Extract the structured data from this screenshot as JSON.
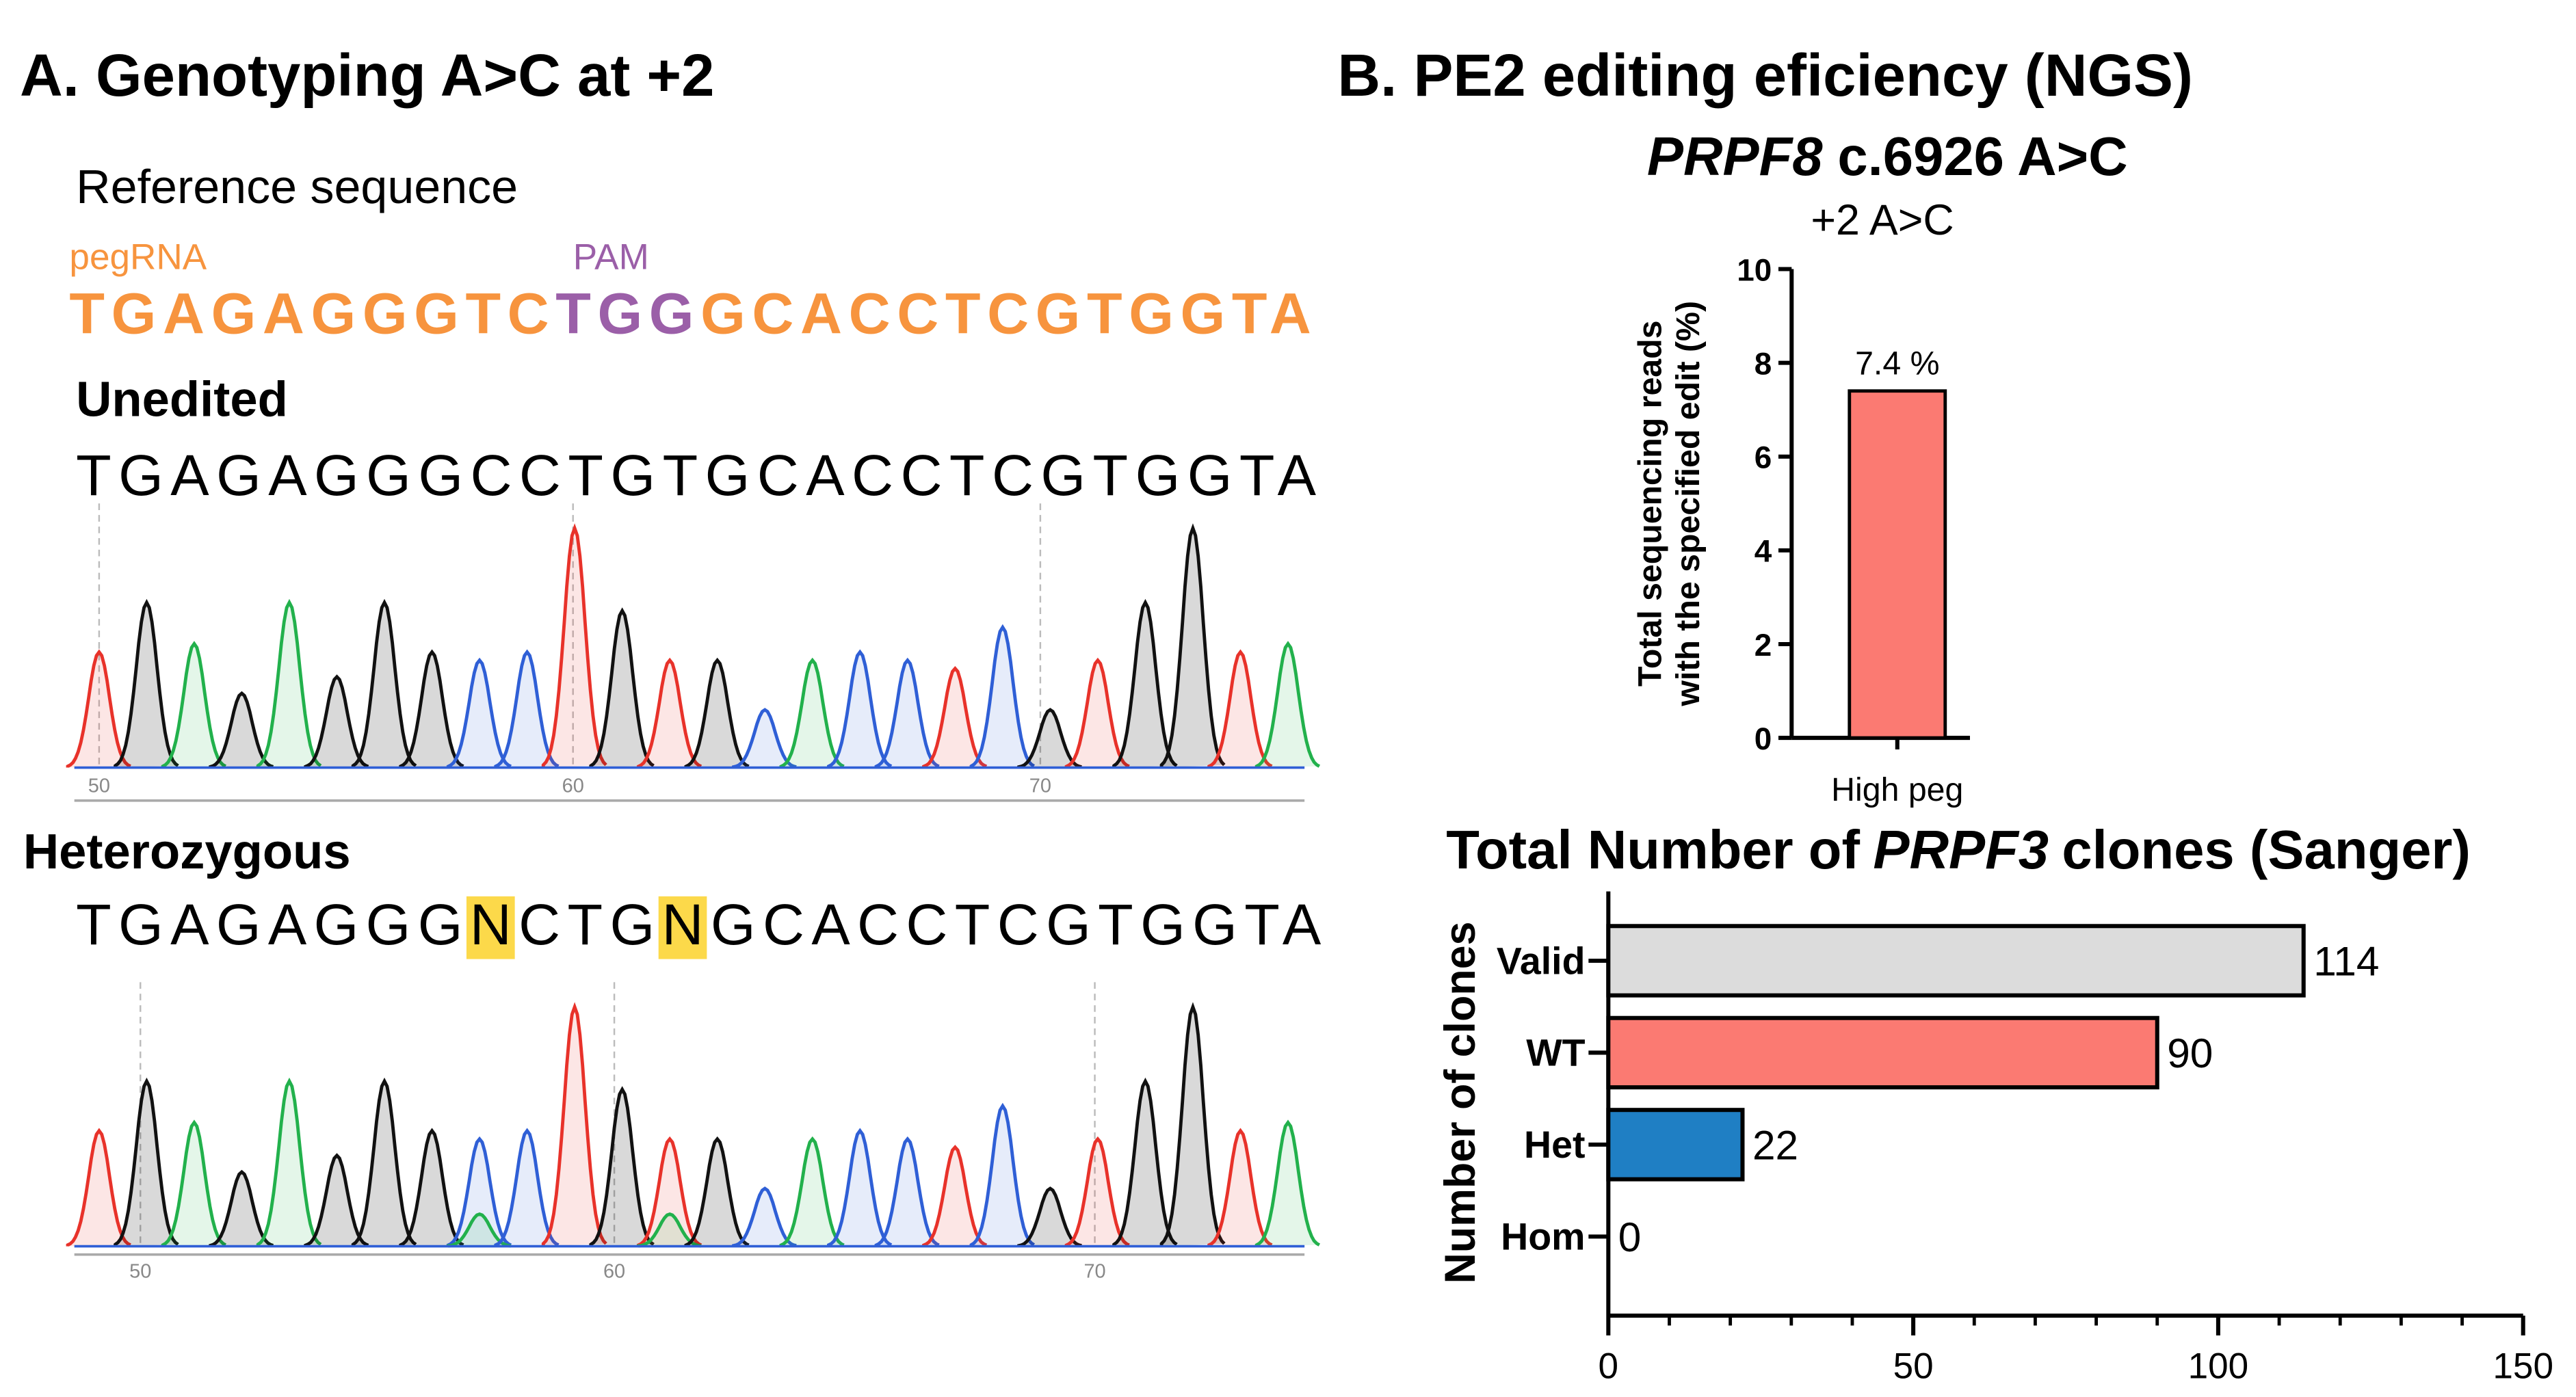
{
  "panel_a": {
    "title": "A. Genotyping A>C at +2",
    "reference_label": "Reference sequence",
    "pegrna_label": "pegRNA",
    "pam_label": "PAM",
    "reference_parts": [
      "TGAGAGGGTC",
      "TGG",
      "GCACCTCGTGGTA"
    ],
    "unedited_label": "Unedited",
    "unedited_sequence": "TGAGAGGGCCTGTGCACCTCGTGGTA",
    "unedited_ticks": [
      "50",
      "60",
      "70"
    ],
    "heterozygous_label": "Heterozygous",
    "heterozygous_parts": [
      "TGAGAGGG",
      "N",
      "CTG",
      "N",
      "GCACCTCGTGGTA"
    ],
    "heterozygous_ticks": [
      "50",
      "60",
      "70"
    ]
  },
  "panel_b_title": "B. PE2 editing eficiency (NGS)",
  "chart_data": [
    {
      "type": "bar",
      "title": [
        "PRPF8",
        "c.6926 A>C"
      ],
      "subtitle": "+2 A>C",
      "ylabel": [
        "Total sequencing reads",
        "with the specified edit (%)"
      ],
      "categories": [
        "High peg"
      ],
      "values": [
        7.4
      ],
      "value_labels": [
        "7.4 %"
      ],
      "color": "#fb7a72",
      "ylim": [
        0,
        10
      ],
      "yticks": [
        0,
        2,
        4,
        6,
        8,
        10
      ]
    },
    {
      "type": "barh",
      "title": [
        "Total Number of ",
        "PRPF3",
        " clones (Sanger)"
      ],
      "ylabel": "Number of clones",
      "categories": [
        "Valid",
        "WT",
        "Het",
        "Hom"
      ],
      "values": [
        114,
        90,
        22,
        0
      ],
      "colors": [
        "#dcdcdc",
        "#fb7a72",
        "#1f7fc4",
        "#1f7fc4"
      ],
      "xlim": [
        0,
        150
      ],
      "xticks": [
        0,
        50,
        100,
        150
      ],
      "xminorticks": [
        10,
        20,
        30,
        40,
        60,
        70,
        80,
        90,
        110,
        120,
        130,
        140
      ]
    }
  ]
}
